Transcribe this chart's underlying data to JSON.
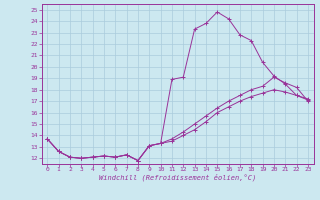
{
  "xlabel": "Windchill (Refroidissement éolien,°C)",
  "bg_color": "#cce8f0",
  "line_color": "#993399",
  "grid_color": "#aaccdd",
  "xlim": [
    -0.5,
    23.5
  ],
  "ylim": [
    11.5,
    25.5
  ],
  "xticks": [
    0,
    1,
    2,
    3,
    4,
    5,
    6,
    7,
    8,
    9,
    10,
    11,
    12,
    13,
    14,
    15,
    16,
    17,
    18,
    19,
    20,
    21,
    22,
    23
  ],
  "yticks": [
    12,
    13,
    14,
    15,
    16,
    17,
    18,
    19,
    20,
    21,
    22,
    23,
    24,
    25
  ],
  "line1_x": [
    0,
    1,
    2,
    3,
    4,
    5,
    6,
    7,
    8,
    9,
    10,
    11,
    12,
    13,
    14,
    15,
    16,
    17,
    18,
    19,
    20,
    21,
    22,
    23
  ],
  "line1_y": [
    13.7,
    12.6,
    12.1,
    12.0,
    12.1,
    12.2,
    12.1,
    12.3,
    11.8,
    13.1,
    13.3,
    18.9,
    19.1,
    23.3,
    23.8,
    24.8,
    24.2,
    22.8,
    22.3,
    20.4,
    19.2,
    18.5,
    17.5,
    17.1
  ],
  "line2_x": [
    0,
    1,
    2,
    3,
    4,
    5,
    6,
    7,
    8,
    9,
    10,
    11,
    12,
    13,
    14,
    15,
    16,
    17,
    18,
    19,
    20,
    21,
    22,
    23
  ],
  "line2_y": [
    13.7,
    12.6,
    12.1,
    12.0,
    12.1,
    12.2,
    12.1,
    12.3,
    11.8,
    13.1,
    13.3,
    13.7,
    14.3,
    15.0,
    15.7,
    16.4,
    17.0,
    17.5,
    18.0,
    18.3,
    19.1,
    18.6,
    18.2,
    17.0
  ],
  "line3_x": [
    0,
    1,
    2,
    3,
    4,
    5,
    6,
    7,
    8,
    9,
    10,
    11,
    12,
    13,
    14,
    15,
    16,
    17,
    18,
    19,
    20,
    21,
    22,
    23
  ],
  "line3_y": [
    13.7,
    12.6,
    12.1,
    12.0,
    12.1,
    12.2,
    12.1,
    12.3,
    11.8,
    13.1,
    13.3,
    13.5,
    14.0,
    14.5,
    15.2,
    16.0,
    16.5,
    17.0,
    17.4,
    17.7,
    18.0,
    17.8,
    17.5,
    17.2
  ]
}
